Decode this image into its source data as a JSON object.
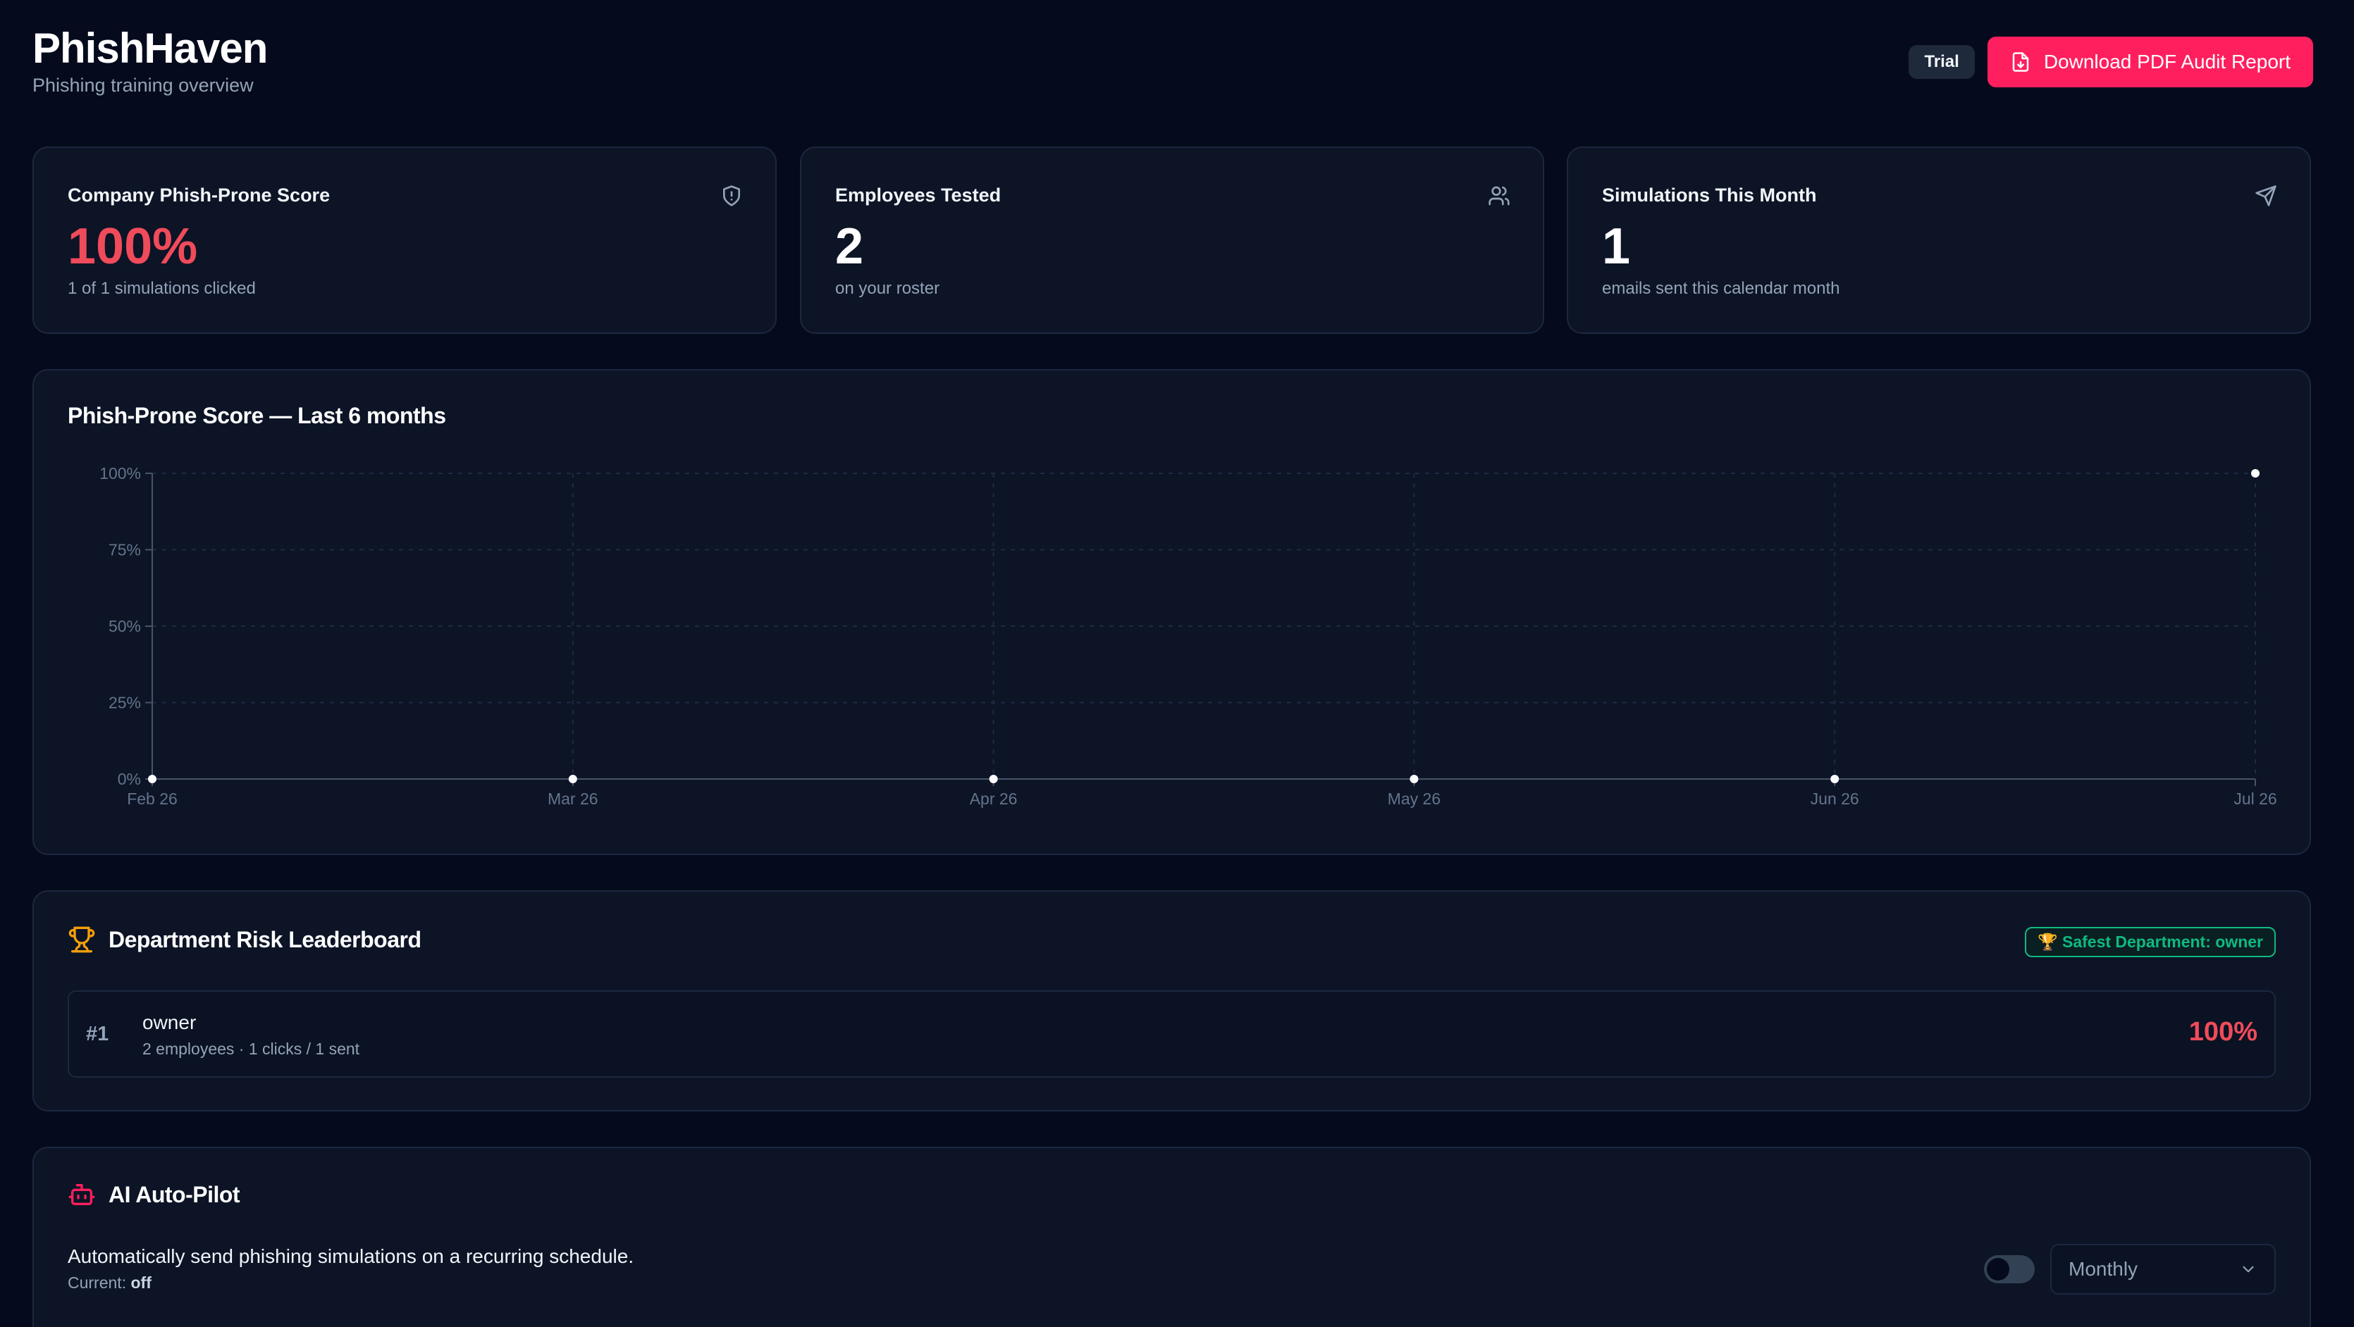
{
  "header": {
    "app_name": "PhishHaven",
    "subtitle": "Phishing training overview",
    "plan_badge": "Trial",
    "download_button": "Download PDF Audit Report"
  },
  "stats": [
    {
      "title": "Company Phish-Prone Score",
      "value": "100%",
      "sub": "1 of 1 simulations clicked",
      "icon": "shield-icon",
      "value_color": "#f04b5a"
    },
    {
      "title": "Employees Tested",
      "value": "2",
      "sub": "on your roster",
      "icon": "users-icon",
      "value_color": "#ffffff"
    },
    {
      "title": "Simulations This Month",
      "value": "1",
      "sub": "emails sent this calendar month",
      "icon": "send-icon",
      "value_color": "#ffffff"
    }
  ],
  "trend": {
    "title": "Phish-Prone Score — Last 6 months"
  },
  "chart_data": {
    "type": "line",
    "title": "Phish-Prone Score — Last 6 months",
    "categories": [
      "Feb 26",
      "Mar 26",
      "Apr 26",
      "May 26",
      "Jun 26",
      "Jul 26"
    ],
    "series": [
      {
        "values": [
          0,
          0,
          0,
          0,
          0,
          100
        ]
      }
    ],
    "y_ticks": [
      "0%",
      "25%",
      "50%",
      "75%",
      "100%"
    ],
    "ylim": [
      0,
      100
    ],
    "grid": true
  },
  "leaderboard": {
    "title": "Department Risk Leaderboard",
    "safest_badge": "🏆 Safest Department: owner",
    "rows": [
      {
        "rank": "#1",
        "name": "owner",
        "meta": "2 employees · 1 clicks / 1 sent",
        "score": "100%"
      }
    ]
  },
  "autopilot": {
    "title": "AI Auto-Pilot",
    "description": "Automatically send phishing simulations on a recurring schedule.",
    "current_label": "Current:",
    "current_value": "off",
    "enabled": false,
    "frequency": "Monthly"
  },
  "colors": {
    "accent": "#ff1f5e",
    "danger": "#f04b5a",
    "success": "#10b981",
    "trophy": "#f59e0b"
  }
}
